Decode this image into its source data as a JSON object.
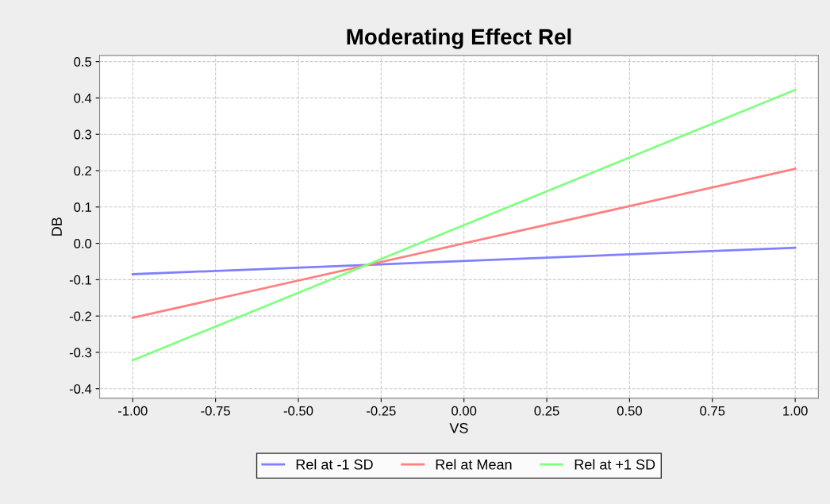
{
  "chart_data": {
    "type": "line",
    "title": "Moderating Effect Rel",
    "xlabel": "VS",
    "ylabel": "DB",
    "xlim": [
      -1.1,
      1.07
    ],
    "ylim": [
      -0.426,
      0.517
    ],
    "xticks": [
      {
        "value": -1,
        "label": "-1.00"
      },
      {
        "value": -0.75,
        "label": "-0.75"
      },
      {
        "value": -0.5,
        "label": "-0.50"
      },
      {
        "value": -0.25,
        "label": "-0.25"
      },
      {
        "value": 0,
        "label": "0.00"
      },
      {
        "value": 0.25,
        "label": "0.25"
      },
      {
        "value": 0.5,
        "label": "0.50"
      },
      {
        "value": 0.75,
        "label": "0.75"
      },
      {
        "value": 1,
        "label": "1.00"
      }
    ],
    "yticks": [
      {
        "value": -0.4,
        "label": "-0.4"
      },
      {
        "value": -0.3,
        "label": "-0.3"
      },
      {
        "value": -0.2,
        "label": "-0.2"
      },
      {
        "value": -0.1,
        "label": "-0.1"
      },
      {
        "value": 0,
        "label": "0.0"
      },
      {
        "value": 0.1,
        "label": "0.1"
      },
      {
        "value": 0.2,
        "label": "0.2"
      },
      {
        "value": 0.3,
        "label": "0.3"
      },
      {
        "value": 0.4,
        "label": "0.4"
      },
      {
        "value": 0.5,
        "label": "0.5"
      }
    ],
    "x": [
      -1,
      1
    ],
    "series": [
      {
        "name": "Rel at -1 SD",
        "color": "#8080ff",
        "values": [
          -0.085,
          -0.012
        ]
      },
      {
        "name": "Rel at Mean",
        "color": "#ff8080",
        "values": [
          -0.205,
          0.205
        ]
      },
      {
        "name": "Rel at +1 SD",
        "color": "#80ff80",
        "values": [
          -0.322,
          0.422
        ]
      }
    ],
    "grid": true,
    "legend": "bottom",
    "line_style": "solid",
    "marker": "none"
  }
}
